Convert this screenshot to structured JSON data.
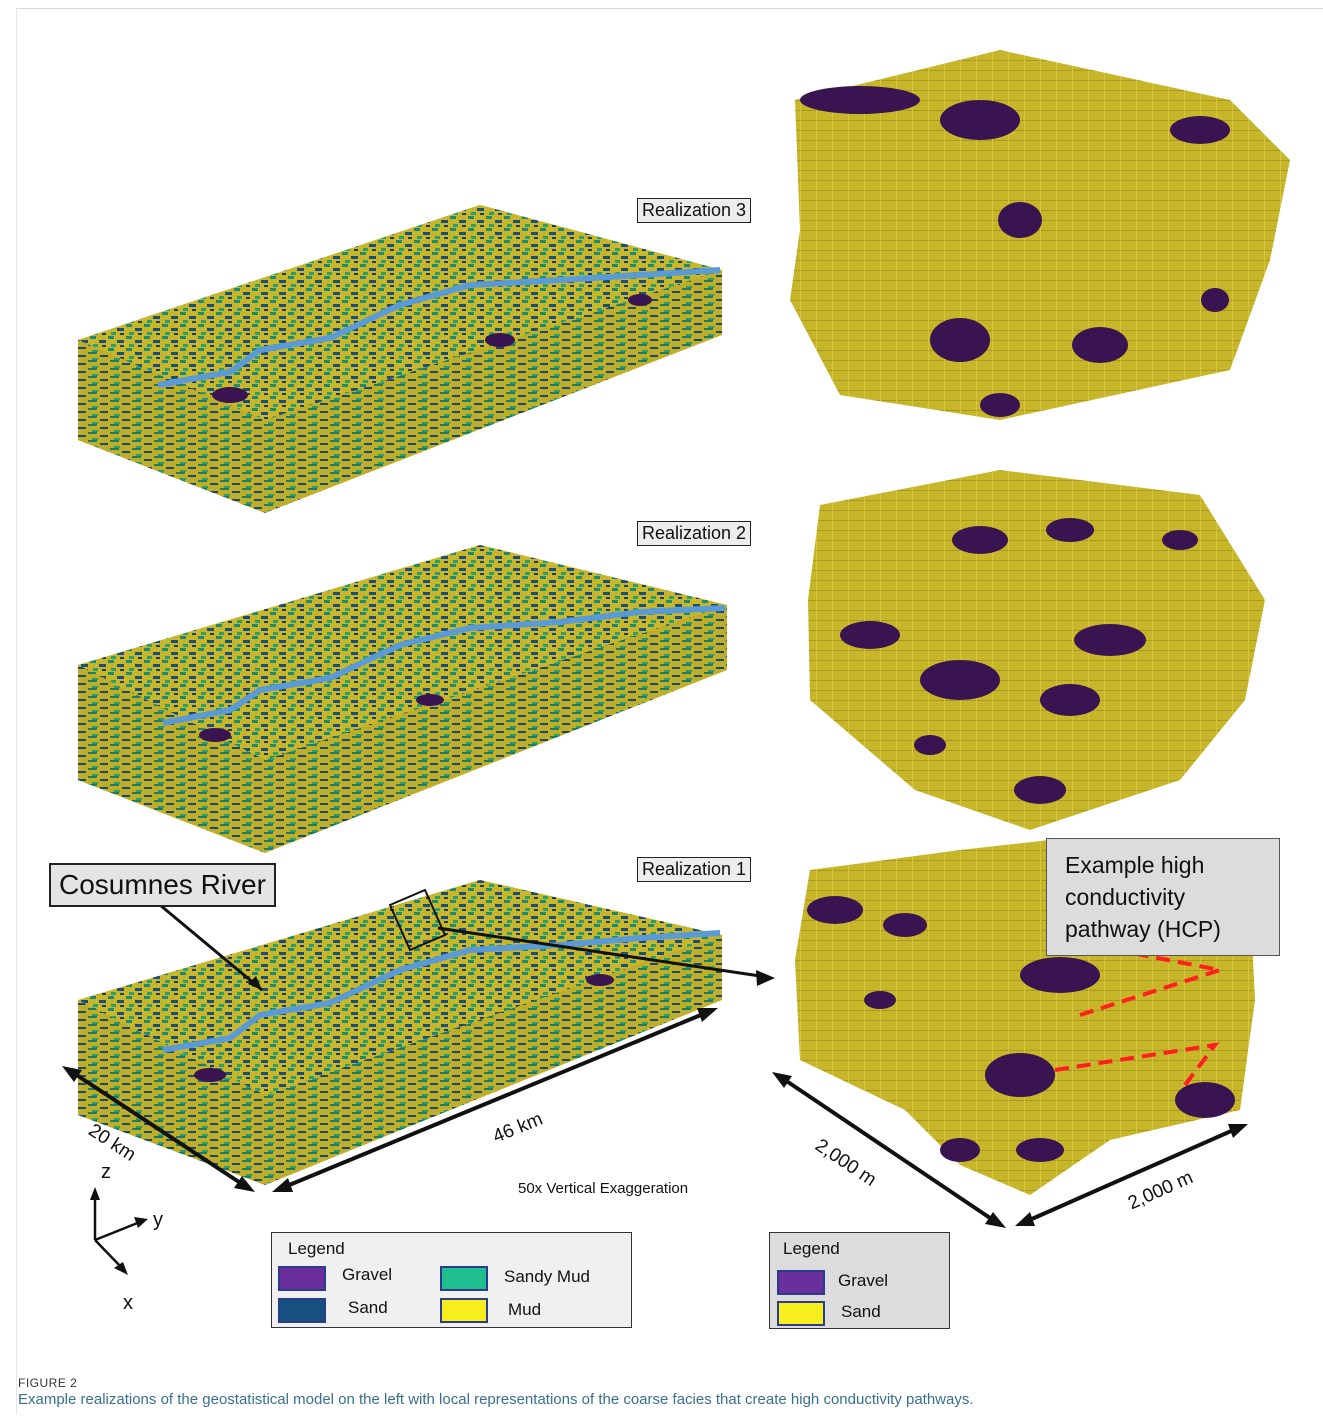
{
  "figure": {
    "realization_labels": [
      "Realization 3",
      "Realization 2",
      "Realization 1"
    ],
    "callout_river": "Cosumnes River",
    "hcp_box": "Example high conductivity pathway (HCP)",
    "dim_width": "20 km",
    "dim_length": "46 km",
    "dim_local_x": "2,000 m",
    "dim_local_y": "2,000 m",
    "exaggeration": "50x Vertical Exaggeration",
    "axes": {
      "z": "z",
      "y": "y",
      "x": "x"
    },
    "legend_left": {
      "title": "Legend",
      "items": [
        {
          "label": "Gravel",
          "color": "#6a2f9c"
        },
        {
          "label": "Sand",
          "color": "#16507e"
        },
        {
          "label": "Sandy Mud",
          "color": "#1fbf8f"
        },
        {
          "label": "Mud",
          "color": "#f7ef1d"
        }
      ]
    },
    "legend_right": {
      "title": "Legend",
      "items": [
        {
          "label": "Gravel",
          "color": "#6a2f9c"
        },
        {
          "label": "Sand",
          "color": "#f7ef1d"
        }
      ]
    },
    "colors": {
      "mud_block": "#c7b72a",
      "gravel_block": "#3a1450",
      "river": "#5b9bd5",
      "hcp_arrow": "#ff1f1f"
    }
  },
  "caption": {
    "label": "FIGURE 2",
    "text": "Example realizations of the geostatistical model on the left with local representations of the coarse facies that create high conductivity pathways."
  }
}
